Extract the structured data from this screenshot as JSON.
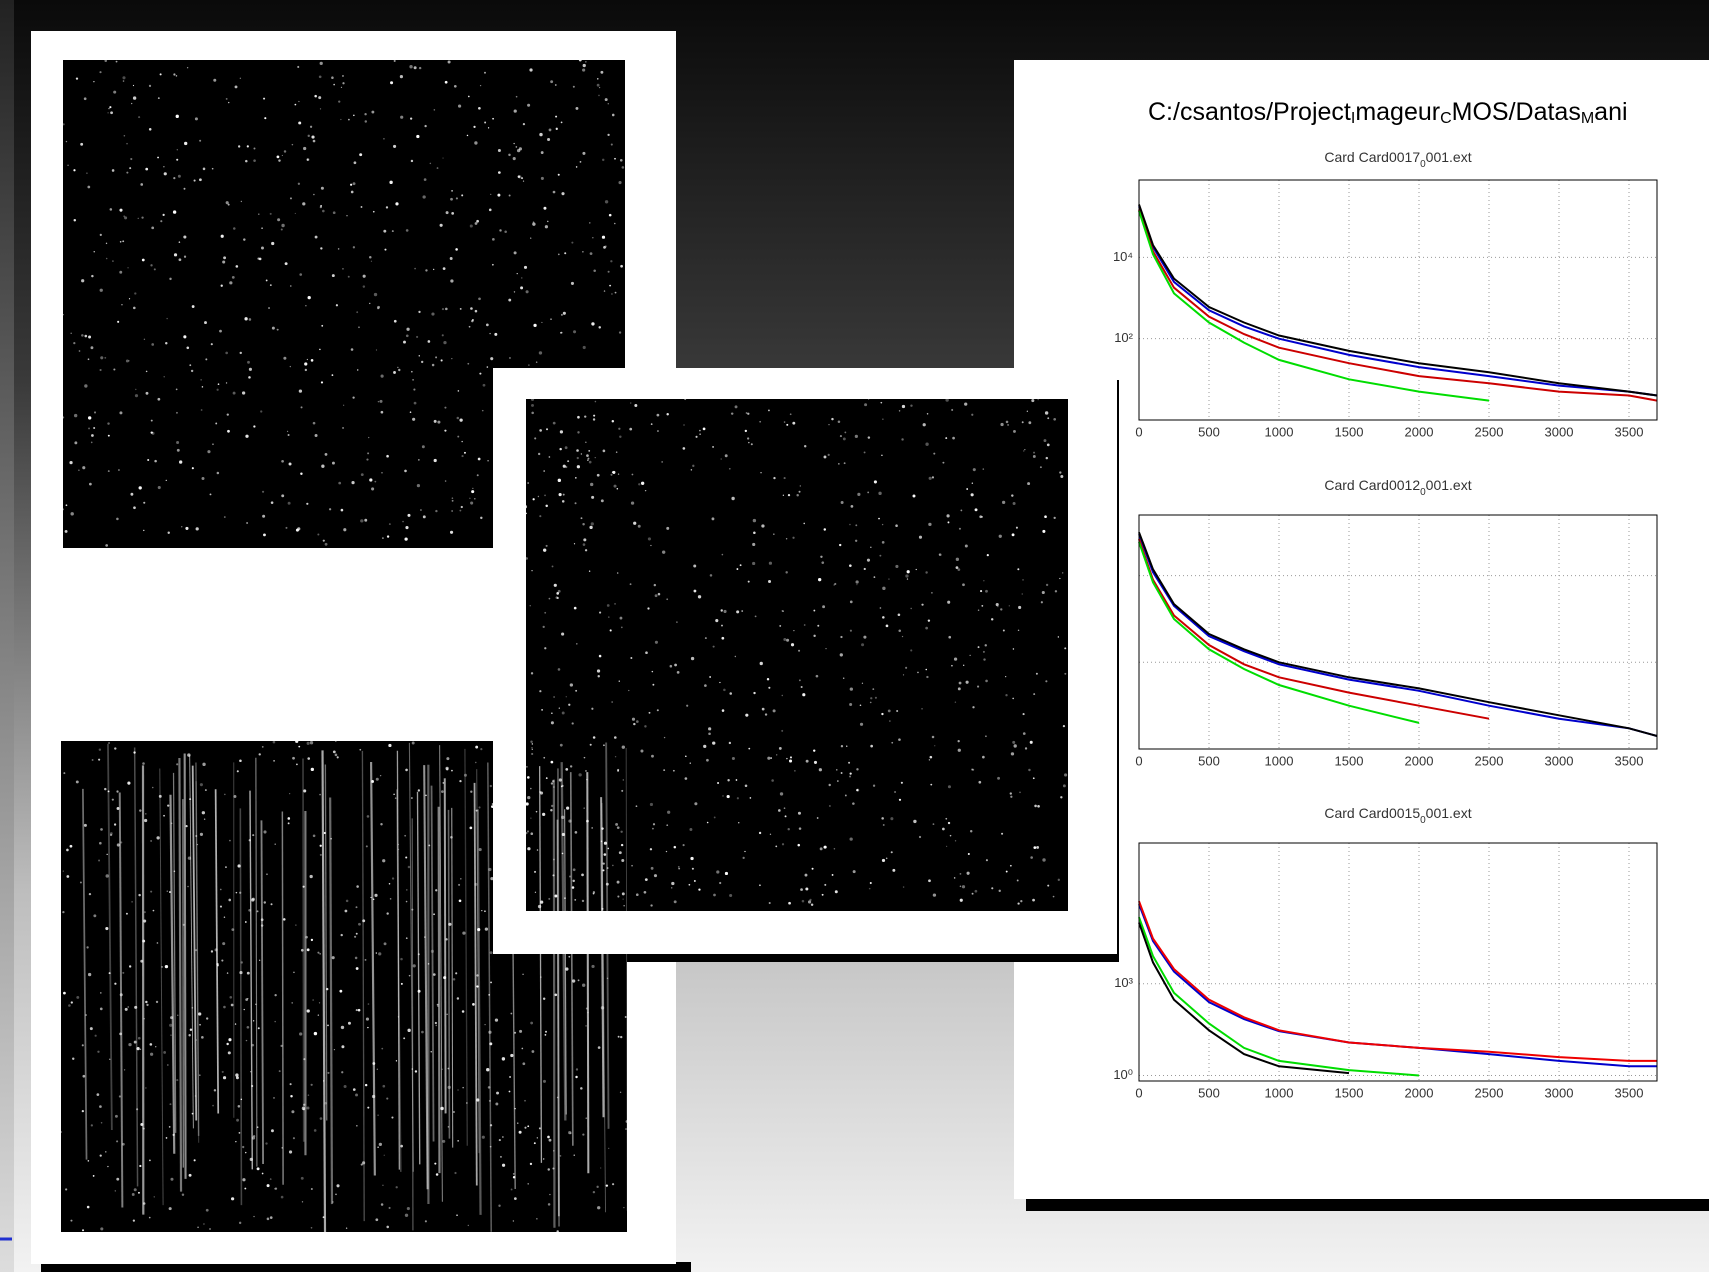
{
  "title_segments": [
    "C:/csantos/Project",
    "I",
    "mageur",
    "C",
    "MOS/Datas",
    "M",
    "ani"
  ],
  "chart_data": [
    {
      "type": "line",
      "title_segments": [
        "Card Card0017",
        "0",
        "001.ext"
      ],
      "log_y": true,
      "grid": true,
      "show_ytick_labels": true,
      "x": [
        0,
        100,
        250,
        500,
        750,
        1000,
        1500,
        2000,
        2500,
        3000,
        3500,
        3700
      ],
      "xlim": [
        0,
        3700
      ],
      "xticks": [
        0,
        500,
        1000,
        1500,
        2000,
        2500,
        3000,
        3500
      ],
      "ylim": [
        1,
        800000
      ],
      "yticks": [
        {
          "value": 100,
          "label": "10²"
        },
        {
          "value": 10000,
          "label": "10⁴"
        }
      ],
      "series": [
        {
          "color": "#0000cc",
          "values": [
            180000,
            18000,
            2500,
            500,
            200,
            100,
            40,
            20,
            12,
            7,
            5,
            4
          ]
        },
        {
          "color": "#cc0000",
          "values": [
            150000,
            14000,
            1800,
            350,
            130,
            60,
            25,
            12,
            8,
            5,
            4,
            3
          ]
        },
        {
          "color": "#00dd00",
          "values": [
            140000,
            12000,
            1300,
            250,
            80,
            30,
            10,
            5,
            3,
            null,
            null,
            null
          ]
        },
        {
          "color": "#000000",
          "values": [
            200000,
            20000,
            3000,
            600,
            250,
            120,
            50,
            25,
            15,
            8,
            5,
            4
          ]
        }
      ]
    },
    {
      "type": "line",
      "title_segments": [
        "Card Card0012",
        "0",
        "001.ext"
      ],
      "log_y": true,
      "grid": true,
      "show_ytick_labels": false,
      "x": [
        0,
        100,
        250,
        500,
        750,
        1000,
        1500,
        2000,
        2500,
        3000,
        3500,
        3700
      ],
      "xlim": [
        0,
        3700
      ],
      "xticks": [
        0,
        500,
        1000,
        1500,
        2000,
        2500,
        3000,
        3500
      ],
      "ylim": [
        1,
        250000
      ],
      "yticks": [
        100,
        10000
      ],
      "series": [
        {
          "color": "#0000cc",
          "values": [
            90000,
            12000,
            2000,
            400,
            180,
            90,
            40,
            22,
            10,
            5,
            3,
            2
          ]
        },
        {
          "color": "#cc0000",
          "values": [
            70000,
            8000,
            1200,
            250,
            90,
            45,
            20,
            10,
            5,
            null,
            null,
            null
          ]
        },
        {
          "color": "#00dd00",
          "values": [
            60000,
            7000,
            1000,
            200,
            70,
            30,
            10,
            4,
            null,
            null,
            null,
            null
          ]
        },
        {
          "color": "#000000",
          "values": [
            100000,
            14000,
            2200,
            450,
            200,
            100,
            45,
            25,
            12,
            6,
            3,
            2
          ]
        }
      ]
    },
    {
      "type": "line",
      "title_segments": [
        "Card Card0015",
        "0",
        "001.ext"
      ],
      "log_y": true,
      "grid": true,
      "show_ytick_labels": true,
      "x": [
        0,
        100,
        250,
        500,
        750,
        1000,
        1500,
        2000,
        2500,
        3000,
        3500,
        3700
      ],
      "xlim": [
        0,
        3700
      ],
      "xticks": [
        0,
        500,
        1000,
        1500,
        2000,
        2500,
        3000,
        3500
      ],
      "ylim": [
        0.66,
        40000000
      ],
      "yticks": [
        {
          "value": 1,
          "label": "10⁰"
        },
        {
          "value": 1000,
          "label": "10³"
        }
      ],
      "series": [
        {
          "color": "#0000cc",
          "values": [
            400000,
            25000,
            2500,
            250,
            70,
            28,
            12,
            8,
            5,
            3,
            2,
            2
          ]
        },
        {
          "color": "#00dd00",
          "values": [
            150000,
            8000,
            500,
            50,
            8,
            3,
            1.5,
            1,
            null,
            null,
            null,
            null
          ]
        },
        {
          "color": "#000000",
          "values": [
            100000,
            5000,
            300,
            30,
            5,
            2,
            1.2,
            null,
            null,
            null,
            null,
            null
          ]
        },
        {
          "color": "#ee0000",
          "values": [
            500000,
            30000,
            3000,
            300,
            80,
            30,
            12,
            8,
            6,
            4,
            3,
            3
          ]
        }
      ]
    }
  ]
}
